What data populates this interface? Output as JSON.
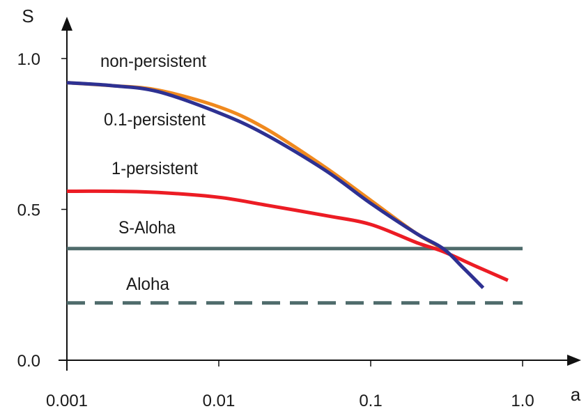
{
  "chart_data": {
    "type": "line",
    "xlabel": "a",
    "ylabel": "S",
    "x_scale": "log",
    "xlim": [
      0.001,
      1.0
    ],
    "ylim": [
      0.0,
      1.0
    ],
    "x_ticks": [
      "0.001",
      "0.01",
      "0.1",
      "1.0"
    ],
    "y_ticks": [
      "0.0",
      "0.5",
      "1.0"
    ],
    "grid": false,
    "legend": "none (inline labels)",
    "series": [
      {
        "name": "non-persistent",
        "color": "#f0891e",
        "style": "solid",
        "x": [
          0.001,
          0.002,
          0.004,
          0.01,
          0.02,
          0.05,
          0.1,
          0.2,
          0.3
        ],
        "y": [
          0.92,
          0.91,
          0.895,
          0.84,
          0.77,
          0.64,
          0.53,
          0.42,
          0.37
        ]
      },
      {
        "name": "0.1-persistent",
        "color": "#2e3192",
        "style": "solid",
        "x": [
          0.001,
          0.002,
          0.004,
          0.01,
          0.02,
          0.05,
          0.1,
          0.2,
          0.3,
          0.4,
          0.55
        ],
        "y": [
          0.92,
          0.91,
          0.89,
          0.82,
          0.75,
          0.63,
          0.52,
          0.42,
          0.37,
          0.31,
          0.24
        ]
      },
      {
        "name": "1-persistent",
        "color": "#ec1c24",
        "style": "solid",
        "x": [
          0.001,
          0.002,
          0.004,
          0.01,
          0.02,
          0.05,
          0.1,
          0.2,
          0.3,
          0.5,
          0.8
        ],
        "y": [
          0.56,
          0.56,
          0.556,
          0.54,
          0.515,
          0.48,
          0.45,
          0.39,
          0.36,
          0.31,
          0.265
        ]
      },
      {
        "name": "S-Aloha",
        "color": "#4f6b6b",
        "style": "solid",
        "x": [
          0.001,
          1.0
        ],
        "y": [
          0.37,
          0.37
        ]
      },
      {
        "name": "Aloha",
        "color": "#4f6b6b",
        "style": "dashed",
        "x": [
          0.001,
          1.0
        ],
        "y": [
          0.19,
          0.19
        ]
      }
    ]
  }
}
